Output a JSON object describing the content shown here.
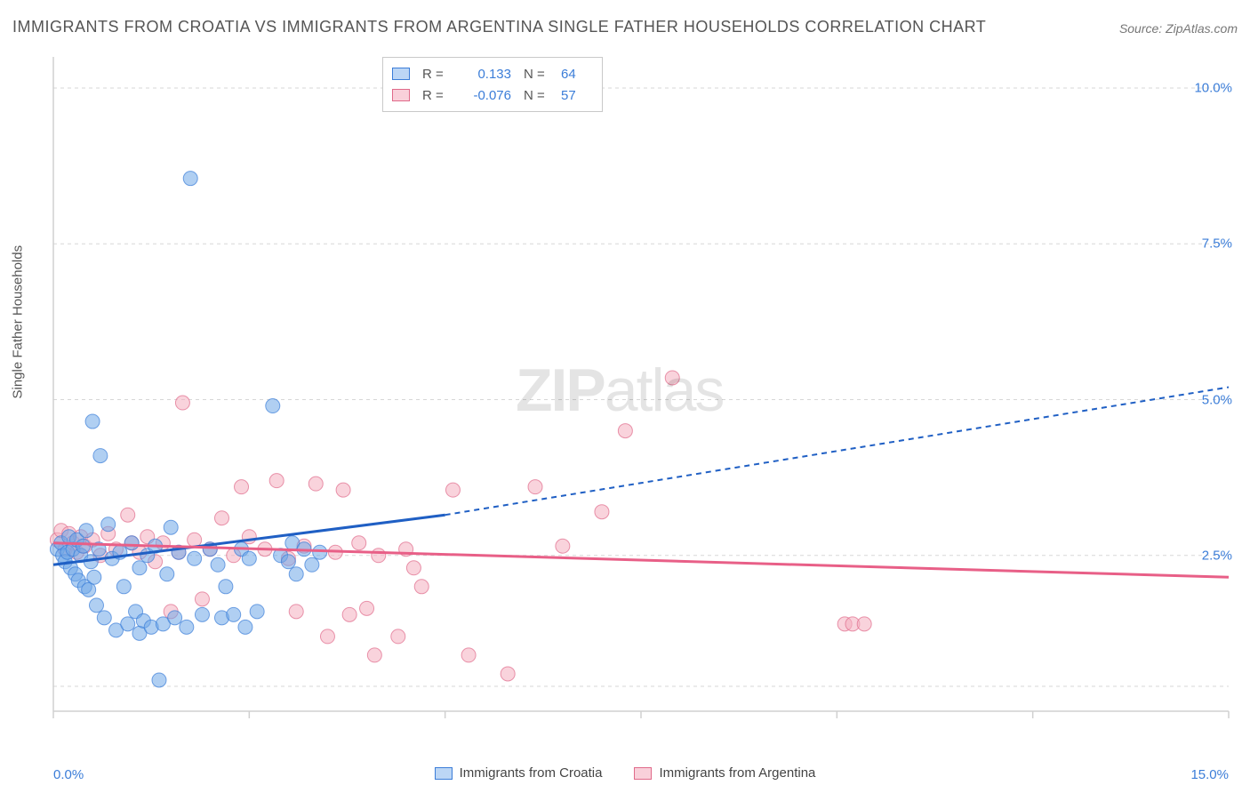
{
  "title": "IMMIGRANTS FROM CROATIA VS IMMIGRANTS FROM ARGENTINA SINGLE FATHER HOUSEHOLDS CORRELATION CHART",
  "source": "Source: ZipAtlas.com",
  "ylabel": "Single Father Households",
  "watermark_zip": "ZIP",
  "watermark_atlas": "atlas",
  "chart": {
    "type": "scatter-with-trend",
    "xlim": [
      0,
      15
    ],
    "ylim": [
      0,
      10.5
    ],
    "x_ticks": [
      0,
      2.5,
      5,
      7.5,
      10,
      12.5,
      15
    ],
    "x_tick_labels": [
      "0.0%",
      "",
      "",
      "",
      "",
      "",
      "15.0%"
    ],
    "y_ticks": [
      2.5,
      5.0,
      7.5,
      10.0
    ],
    "y_tick_labels": [
      "2.5%",
      "5.0%",
      "7.5%",
      "10.0%"
    ],
    "grid_color": "#d7d7d7",
    "axis_color": "#d0d0d0",
    "background": "#ffffff",
    "marker_radius": 8,
    "marker_opacity": 0.55,
    "series": [
      {
        "name": "Immigrants from Croatia",
        "color": "#6fa8e8",
        "stroke": "#3b7dd8",
        "trend_color": "#1f5fc4",
        "R": "0.133",
        "N": "64",
        "trend_solid": [
          [
            0.0,
            2.35
          ],
          [
            5.0,
            3.15
          ]
        ],
        "trend_dashed": [
          [
            5.0,
            3.15
          ],
          [
            15.0,
            5.2
          ]
        ],
        "points": [
          [
            0.05,
            2.6
          ],
          [
            0.1,
            2.7
          ],
          [
            0.12,
            2.5
          ],
          [
            0.15,
            2.4
          ],
          [
            0.18,
            2.55
          ],
          [
            0.2,
            2.8
          ],
          [
            0.22,
            2.3
          ],
          [
            0.25,
            2.6
          ],
          [
            0.28,
            2.2
          ],
          [
            0.3,
            2.75
          ],
          [
            0.32,
            2.1
          ],
          [
            0.35,
            2.5
          ],
          [
            0.38,
            2.65
          ],
          [
            0.4,
            2.0
          ],
          [
            0.42,
            2.9
          ],
          [
            0.45,
            1.95
          ],
          [
            0.48,
            2.4
          ],
          [
            0.5,
            4.65
          ],
          [
            0.52,
            2.15
          ],
          [
            0.55,
            1.7
          ],
          [
            0.58,
            2.6
          ],
          [
            0.6,
            4.1
          ],
          [
            0.65,
            1.5
          ],
          [
            0.7,
            3.0
          ],
          [
            0.75,
            2.45
          ],
          [
            0.8,
            1.3
          ],
          [
            0.85,
            2.55
          ],
          [
            0.9,
            2.0
          ],
          [
            0.95,
            1.4
          ],
          [
            1.0,
            2.7
          ],
          [
            1.05,
            1.6
          ],
          [
            1.1,
            2.3
          ],
          [
            1.1,
            1.25
          ],
          [
            1.15,
            1.45
          ],
          [
            1.2,
            2.5
          ],
          [
            1.25,
            1.35
          ],
          [
            1.3,
            2.65
          ],
          [
            1.35,
            0.5
          ],
          [
            1.4,
            1.4
          ],
          [
            1.45,
            2.2
          ],
          [
            1.5,
            2.95
          ],
          [
            1.55,
            1.5
          ],
          [
            1.6,
            2.55
          ],
          [
            1.7,
            1.35
          ],
          [
            1.75,
            8.55
          ],
          [
            1.8,
            2.45
          ],
          [
            1.9,
            1.55
          ],
          [
            2.0,
            2.6
          ],
          [
            2.1,
            2.35
          ],
          [
            2.15,
            1.5
          ],
          [
            2.2,
            2.0
          ],
          [
            2.3,
            1.55
          ],
          [
            2.4,
            2.6
          ],
          [
            2.45,
            1.35
          ],
          [
            2.5,
            2.45
          ],
          [
            2.6,
            1.6
          ],
          [
            2.8,
            4.9
          ],
          [
            2.9,
            2.5
          ],
          [
            3.0,
            2.4
          ],
          [
            3.05,
            2.7
          ],
          [
            3.1,
            2.2
          ],
          [
            3.2,
            2.6
          ],
          [
            3.3,
            2.35
          ],
          [
            3.4,
            2.55
          ]
        ]
      },
      {
        "name": "Immigrants from Argentina",
        "color": "#f4aebf",
        "stroke": "#e06a8a",
        "trend_color": "#e85f87",
        "R": "-0.076",
        "N": "57",
        "trend_solid": [
          [
            0.0,
            2.7
          ],
          [
            15.0,
            2.15
          ]
        ],
        "trend_dashed": null,
        "points": [
          [
            0.05,
            2.75
          ],
          [
            0.1,
            2.9
          ],
          [
            0.15,
            2.6
          ],
          [
            0.2,
            2.85
          ],
          [
            0.25,
            2.7
          ],
          [
            0.3,
            2.55
          ],
          [
            0.35,
            2.8
          ],
          [
            0.4,
            2.65
          ],
          [
            0.5,
            2.75
          ],
          [
            0.6,
            2.5
          ],
          [
            0.7,
            2.85
          ],
          [
            0.8,
            2.6
          ],
          [
            0.95,
            3.15
          ],
          [
            1.0,
            2.7
          ],
          [
            1.1,
            2.55
          ],
          [
            1.2,
            2.8
          ],
          [
            1.3,
            2.4
          ],
          [
            1.4,
            2.7
          ],
          [
            1.5,
            1.6
          ],
          [
            1.6,
            2.55
          ],
          [
            1.65,
            4.95
          ],
          [
            1.8,
            2.75
          ],
          [
            1.9,
            1.8
          ],
          [
            2.0,
            2.6
          ],
          [
            2.15,
            3.1
          ],
          [
            2.3,
            2.5
          ],
          [
            2.4,
            3.6
          ],
          [
            2.5,
            2.8
          ],
          [
            2.7,
            2.6
          ],
          [
            2.85,
            3.7
          ],
          [
            3.0,
            2.45
          ],
          [
            3.1,
            1.6
          ],
          [
            3.2,
            2.65
          ],
          [
            3.35,
            3.65
          ],
          [
            3.5,
            1.2
          ],
          [
            3.6,
            2.55
          ],
          [
            3.7,
            3.55
          ],
          [
            3.78,
            1.55
          ],
          [
            3.9,
            2.7
          ],
          [
            4.0,
            1.65
          ],
          [
            4.1,
            0.9
          ],
          [
            4.15,
            2.5
          ],
          [
            4.4,
            1.2
          ],
          [
            4.5,
            2.6
          ],
          [
            4.6,
            2.3
          ],
          [
            4.7,
            2.0
          ],
          [
            5.1,
            3.55
          ],
          [
            5.3,
            0.9
          ],
          [
            5.8,
            0.6
          ],
          [
            6.15,
            3.6
          ],
          [
            6.5,
            2.65
          ],
          [
            7.0,
            3.2
          ],
          [
            7.3,
            4.5
          ],
          [
            7.9,
            5.35
          ],
          [
            10.1,
            1.4
          ],
          [
            10.2,
            1.4
          ],
          [
            10.35,
            1.4
          ]
        ]
      }
    ]
  },
  "stat_rows": [
    {
      "swFill": "#bcd6f5",
      "swStroke": "#3b7dd8",
      "R": "0.133",
      "N": "64"
    },
    {
      "swFill": "#f9d0da",
      "swStroke": "#e06a8a",
      "R": "-0.076",
      "N": "57"
    }
  ],
  "bottom_legend": [
    {
      "swFill": "#bcd6f5",
      "swStroke": "#3b7dd8",
      "label": "Immigrants from Croatia"
    },
    {
      "swFill": "#f9d0da",
      "swStroke": "#e06a8a",
      "label": "Immigrants from Argentina"
    }
  ]
}
